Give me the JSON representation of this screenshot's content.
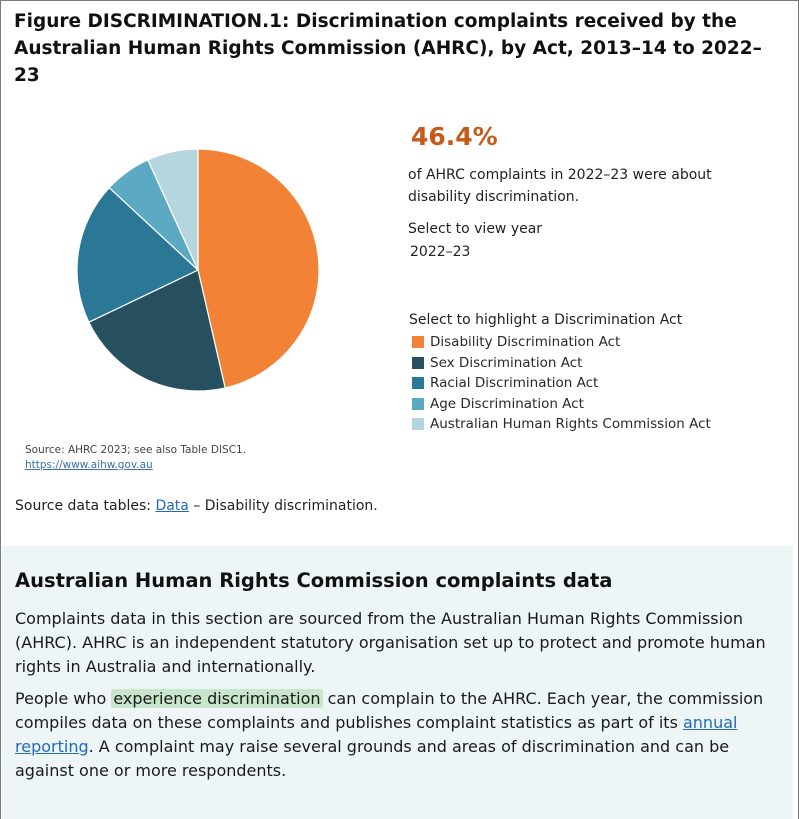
{
  "figure": {
    "title": "Figure DISCRIMINATION.1: Discrimination complaints received by the Australian Human Rights Commission (AHRC), by Act, 2013–14 to 2022–23"
  },
  "stat": {
    "value": "46.4%",
    "description": "of AHRC complaints in 2022–23 were about disability discrimination."
  },
  "year_selector": {
    "label": "Select to view year",
    "value": "2022–23"
  },
  "act_selector": {
    "label": "Select to highlight a Discrimination Act"
  },
  "chart_data": {
    "type": "pie",
    "title": "",
    "categories": [
      "Disability Discrimination Act",
      "Sex Discrimination Act",
      "Racial Discrimination Act",
      "Age Discrimination Act",
      "Australian Human Rights Commission Act"
    ],
    "values": [
      46.4,
      21.5,
      19.0,
      6.3,
      6.8
    ],
    "unit": "%",
    "colors": [
      "#f28235",
      "#264f5f",
      "#2a7895",
      "#5ba9c2",
      "#b5d6df"
    ],
    "legend_position": "right"
  },
  "source": {
    "note": "Source: AHRC 2023; see also Table DISC1.",
    "link": "https://www.aihw.gov.au"
  },
  "source_tables": {
    "prefix": "Source data tables: ",
    "link": "Data",
    "suffix": " – Disability discrimination."
  },
  "panel": {
    "title": "Australian Human Rights Commission complaints data",
    "p1": "Complaints data in this section are sourced from the Australian Human Rights Commission (AHRC). AHRC is an independent statutory organisation set up to protect and promote human rights in Australia and internationally.",
    "p2_a": "People who ",
    "p2_highlight": "experience discrimination",
    "p2_b": " can complain to the AHRC. Each year, the commission compiles data on these complaints and publishes complaint statistics as part of its ",
    "p2_link": "annual reporting",
    "p2_c": ". A complaint may raise several grounds and areas of discrimination and can be against one or more respondents."
  }
}
